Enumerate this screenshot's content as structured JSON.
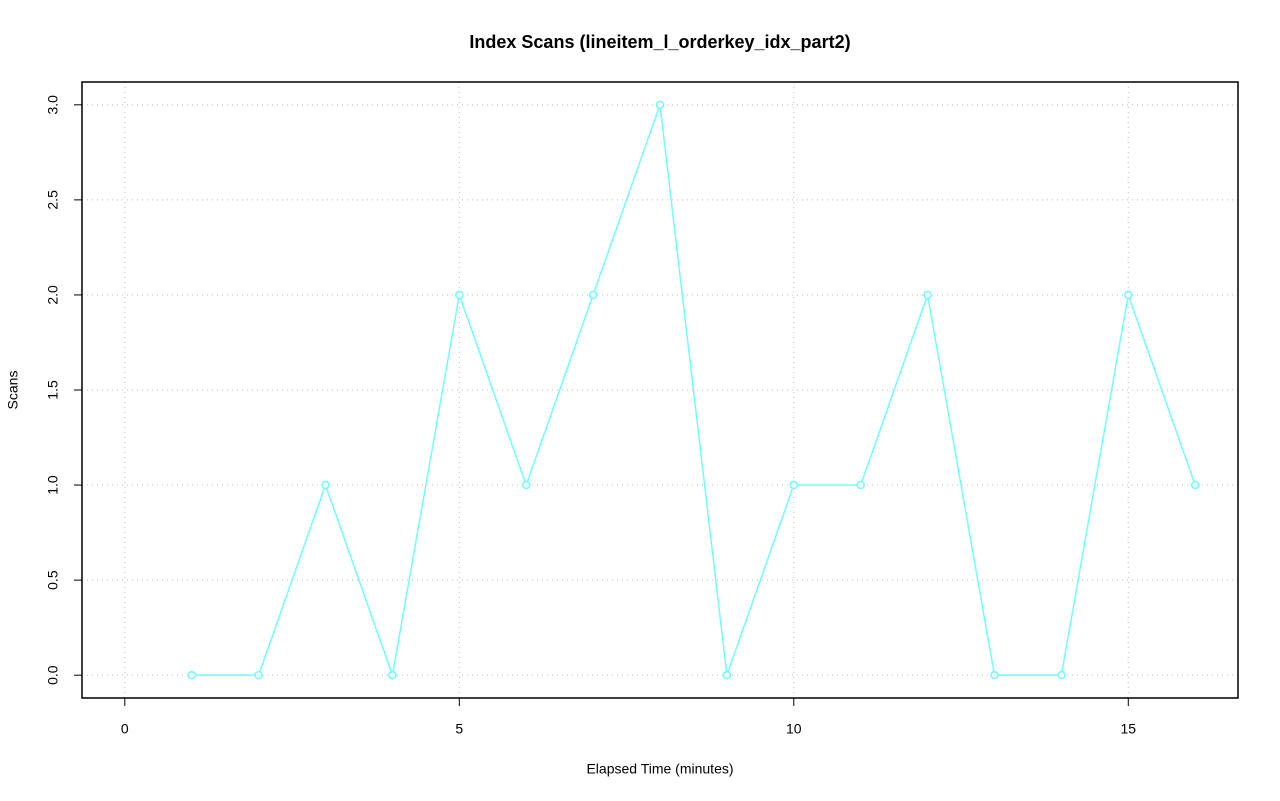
{
  "chart_data": {
    "type": "line",
    "title": "Index Scans (lineitem_l_orderkey_idx_part2)",
    "xlabel": "Elapsed Time (minutes)",
    "ylabel": "Scans",
    "x": [
      1,
      2,
      3,
      4,
      5,
      6,
      7,
      8,
      9,
      10,
      11,
      12,
      13,
      14,
      15,
      16
    ],
    "series": [
      {
        "name": "Scans",
        "color": "#70ffff",
        "values": [
          0,
          0,
          1,
          0,
          2,
          1,
          2,
          3,
          0,
          1,
          1,
          2,
          0,
          0,
          2,
          1
        ]
      }
    ],
    "xlim": [
      -0.64,
      16.64
    ],
    "xticks": [
      0,
      5,
      10,
      15
    ],
    "ylim": [
      -0.12,
      3.12
    ],
    "yticks": [
      {
        "value": 0,
        "label": "0.0"
      },
      {
        "value": 0.5,
        "label": "0.5"
      },
      {
        "value": 1,
        "label": "1.0"
      },
      {
        "value": 1.5,
        "label": "1.5"
      },
      {
        "value": 2,
        "label": "2.0"
      },
      {
        "value": 2.5,
        "label": "2.5"
      },
      {
        "value": 3,
        "label": "3.0"
      }
    ],
    "grid": true
  }
}
